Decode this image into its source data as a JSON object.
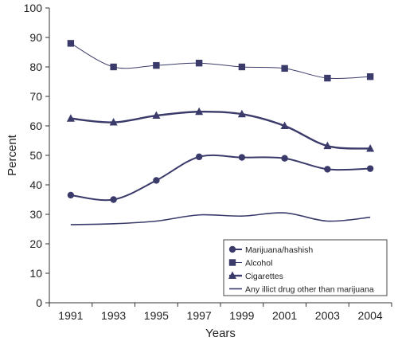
{
  "chart_data": {
    "type": "line",
    "xlabel": "Years",
    "ylabel": "Percent",
    "ylim": [
      0,
      100
    ],
    "yticks": [
      0,
      10,
      20,
      30,
      40,
      50,
      60,
      70,
      80,
      90,
      100
    ],
    "categories": [
      "1991",
      "1993",
      "1995",
      "1997",
      "1999",
      "2001",
      "2003",
      "2004"
    ],
    "grid": false,
    "legend_position": "bottom-right",
    "series": [
      {
        "name": "Marijuana/hashish",
        "marker": "circle",
        "values": [
          36.5,
          35,
          41.5,
          49.5,
          49.3,
          49,
          45.3,
          45.5
        ]
      },
      {
        "name": "Alcohol",
        "marker": "square",
        "values": [
          88,
          80,
          80.5,
          81.3,
          80,
          79.5,
          76.2,
          76.7
        ]
      },
      {
        "name": "Cigarettes",
        "marker": "triangle",
        "values": [
          62.5,
          61.2,
          63.5,
          64.8,
          64,
          60,
          53.2,
          52.3
        ]
      },
      {
        "name": "Any illict drug other than marijuana",
        "marker": "none",
        "values": [
          26.5,
          26.8,
          27.7,
          29.8,
          29.4,
          30.5,
          27.7,
          29
        ]
      }
    ],
    "colors": {
      "line": "#3b3b6b",
      "marker": "#3b3b6b",
      "axis": "#333333"
    }
  }
}
